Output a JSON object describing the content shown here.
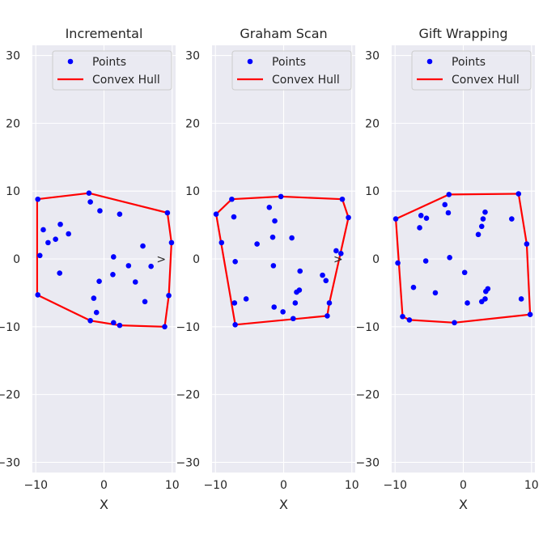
{
  "chart_data": [
    {
      "type": "scatter",
      "title": "Incremental",
      "xlabel": "X",
      "ylabel": "",
      "xlim": [
        -10.5,
        10.5
      ],
      "ylim": [
        -31.5,
        31.5
      ],
      "xticks": [
        -10,
        0,
        10
      ],
      "yticks": [
        -30,
        -20,
        -10,
        0,
        10,
        20,
        30
      ],
      "tick_labels_x": [
        "−10",
        "0",
        "10"
      ],
      "tick_labels_y": [
        "−30",
        "−20",
        "−10",
        "0",
        "10",
        "20",
        "30"
      ],
      "grid": true,
      "legend_position": "top",
      "legend": [
        {
          "label": "Points",
          "kind": "marker",
          "color": "#0000ff"
        },
        {
          "label": "Convex Hull",
          "kind": "line",
          "color": "#ff0000"
        }
      ],
      "series": [
        {
          "name": "Points",
          "kind": "scatter",
          "color": "#0000ff",
          "points": [
            [
              -9.7,
              8.8
            ],
            [
              -2.2,
              9.7
            ],
            [
              -2.0,
              8.4
            ],
            [
              -0.6,
              7.1
            ],
            [
              2.3,
              6.6
            ],
            [
              -6.4,
              5.1
            ],
            [
              -8.9,
              4.3
            ],
            [
              -5.2,
              3.7
            ],
            [
              -7.1,
              2.9
            ],
            [
              -8.2,
              2.4
            ],
            [
              9.3,
              6.8
            ],
            [
              9.9,
              2.4
            ],
            [
              5.7,
              1.9
            ],
            [
              -9.4,
              0.5
            ],
            [
              1.4,
              0.3
            ],
            [
              3.6,
              -1.0
            ],
            [
              6.9,
              -1.1
            ],
            [
              -6.5,
              -2.1
            ],
            [
              1.3,
              -2.3
            ],
            [
              -0.7,
              -3.3
            ],
            [
              4.6,
              -3.4
            ],
            [
              -1.5,
              -5.8
            ],
            [
              9.5,
              -5.4
            ],
            [
              -9.7,
              -5.3
            ],
            [
              6.0,
              -6.3
            ],
            [
              -1.1,
              -7.9
            ],
            [
              -2.0,
              -9.1
            ],
            [
              1.4,
              -9.4
            ],
            [
              2.3,
              -9.8
            ],
            [
              8.9,
              -10.0
            ]
          ]
        },
        {
          "name": "Convex Hull",
          "kind": "line",
          "color": "#ff0000",
          "points": [
            [
              -9.8,
              8.8
            ],
            [
              -2.2,
              9.7
            ],
            [
              9.3,
              6.8
            ],
            [
              9.9,
              2.4
            ],
            [
              9.5,
              -5.4
            ],
            [
              8.9,
              -10.0
            ],
            [
              2.3,
              -9.8
            ],
            [
              -2.0,
              -9.1
            ],
            [
              -9.8,
              -5.3
            ],
            [
              -9.8,
              8.8
            ]
          ]
        }
      ],
      "annotations": [
        {
          "text": ">",
          "x": 8.4,
          "y": 0.0
        }
      ]
    },
    {
      "type": "scatter",
      "title": "Graham Scan",
      "xlabel": "X",
      "ylabel": "",
      "xlim": [
        -10.5,
        10.5
      ],
      "ylim": [
        -31.5,
        31.5
      ],
      "xticks": [
        -10,
        0,
        10
      ],
      "yticks": [
        -30,
        -20,
        -10,
        0,
        10,
        20,
        30
      ],
      "tick_labels_x": [
        "−10",
        "0",
        "10"
      ],
      "tick_labels_y": [
        "−30",
        "−20",
        "−10",
        "0",
        "10",
        "20",
        "30"
      ],
      "grid": true,
      "legend_position": "top",
      "legend": [
        {
          "label": "Points",
          "kind": "marker",
          "color": "#0000ff"
        },
        {
          "label": "Convex Hull",
          "kind": "line",
          "color": "#ff0000"
        }
      ],
      "series": [
        {
          "name": "Points",
          "kind": "scatter",
          "color": "#0000ff",
          "points": [
            [
              -9.9,
              6.6
            ],
            [
              -7.6,
              8.8
            ],
            [
              -0.4,
              9.2
            ],
            [
              8.6,
              8.8
            ],
            [
              9.5,
              6.1
            ],
            [
              -7.3,
              6.2
            ],
            [
              -2.1,
              7.6
            ],
            [
              -1.3,
              5.6
            ],
            [
              -9.1,
              2.4
            ],
            [
              -3.9,
              2.2
            ],
            [
              -1.6,
              3.2
            ],
            [
              1.2,
              3.1
            ],
            [
              7.7,
              1.2
            ],
            [
              8.4,
              0.8
            ],
            [
              -7.1,
              -0.4
            ],
            [
              -1.5,
              -1.0
            ],
            [
              2.4,
              -1.8
            ],
            [
              5.7,
              -2.4
            ],
            [
              6.2,
              -3.2
            ],
            [
              2.3,
              -4.6
            ],
            [
              1.9,
              -4.9
            ],
            [
              -5.5,
              -5.9
            ],
            [
              -7.2,
              -6.5
            ],
            [
              1.7,
              -6.5
            ],
            [
              6.7,
              -6.5
            ],
            [
              -1.4,
              -7.1
            ],
            [
              -0.1,
              -7.8
            ],
            [
              1.4,
              -8.8
            ],
            [
              6.4,
              -8.4
            ],
            [
              -7.1,
              -9.7
            ]
          ]
        },
        {
          "name": "Convex Hull",
          "kind": "line",
          "color": "#ff0000",
          "points": [
            [
              -9.9,
              6.6
            ],
            [
              -7.6,
              8.8
            ],
            [
              -0.4,
              9.2
            ],
            [
              8.6,
              8.8
            ],
            [
              9.5,
              6.1
            ],
            [
              6.7,
              -6.5
            ],
            [
              6.4,
              -8.4
            ],
            [
              -7.1,
              -9.7
            ],
            [
              -9.9,
              6.6
            ]
          ]
        }
      ],
      "annotations": [
        {
          "text": ">",
          "x": 8.0,
          "y": 0.0
        }
      ]
    },
    {
      "type": "scatter",
      "title": "Gift Wrapping",
      "xlabel": "X",
      "ylabel": "",
      "xlim": [
        -10.5,
        10.5
      ],
      "ylim": [
        -31.5,
        31.5
      ],
      "xticks": [
        -10,
        0,
        10
      ],
      "yticks": [
        -30,
        -20,
        -10,
        0,
        10,
        20,
        30
      ],
      "tick_labels_x": [
        "−10",
        "0",
        "10"
      ],
      "tick_labels_y": [
        "−30",
        "−20",
        "−10",
        "0",
        "10",
        "20",
        "30"
      ],
      "grid": true,
      "legend_position": "top",
      "legend": [
        {
          "label": "Points",
          "kind": "marker",
          "color": "#0000ff"
        },
        {
          "label": "Convex Hull",
          "kind": "line",
          "color": "#ff0000"
        }
      ],
      "series": [
        {
          "name": "Points",
          "kind": "scatter",
          "color": "#0000ff",
          "points": [
            [
              -2.1,
              9.5
            ],
            [
              8.1,
              9.6
            ],
            [
              -2.7,
              8.0
            ],
            [
              -2.2,
              6.8
            ],
            [
              3.2,
              6.9
            ],
            [
              -6.2,
              6.4
            ],
            [
              -5.4,
              6.0
            ],
            [
              2.9,
              5.9
            ],
            [
              7.1,
              5.9
            ],
            [
              -9.9,
              5.9
            ],
            [
              -6.4,
              4.6
            ],
            [
              2.7,
              4.8
            ],
            [
              2.2,
              3.6
            ],
            [
              9.3,
              2.2
            ],
            [
              -9.6,
              -0.6
            ],
            [
              -5.5,
              -0.3
            ],
            [
              -2.0,
              0.2
            ],
            [
              0.2,
              -2.0
            ],
            [
              -7.3,
              -4.2
            ],
            [
              3.6,
              -4.4
            ],
            [
              3.3,
              -4.8
            ],
            [
              -4.1,
              -5.0
            ],
            [
              8.5,
              -5.9
            ],
            [
              3.2,
              -5.9
            ],
            [
              2.7,
              -6.3
            ],
            [
              0.6,
              -6.5
            ],
            [
              9.8,
              -8.2
            ],
            [
              -8.9,
              -8.5
            ],
            [
              -7.9,
              -9.0
            ],
            [
              -1.3,
              -9.4
            ]
          ]
        },
        {
          "name": "Convex Hull",
          "kind": "line",
          "color": "#ff0000",
          "points": [
            [
              -9.9,
              5.9
            ],
            [
              -2.1,
              9.5
            ],
            [
              8.1,
              9.6
            ],
            [
              9.3,
              2.2
            ],
            [
              9.8,
              -8.2
            ],
            [
              -1.3,
              -9.4
            ],
            [
              -7.9,
              -9.0
            ],
            [
              -8.9,
              -8.5
            ],
            [
              -9.9,
              5.9
            ]
          ]
        }
      ],
      "annotations": []
    }
  ]
}
